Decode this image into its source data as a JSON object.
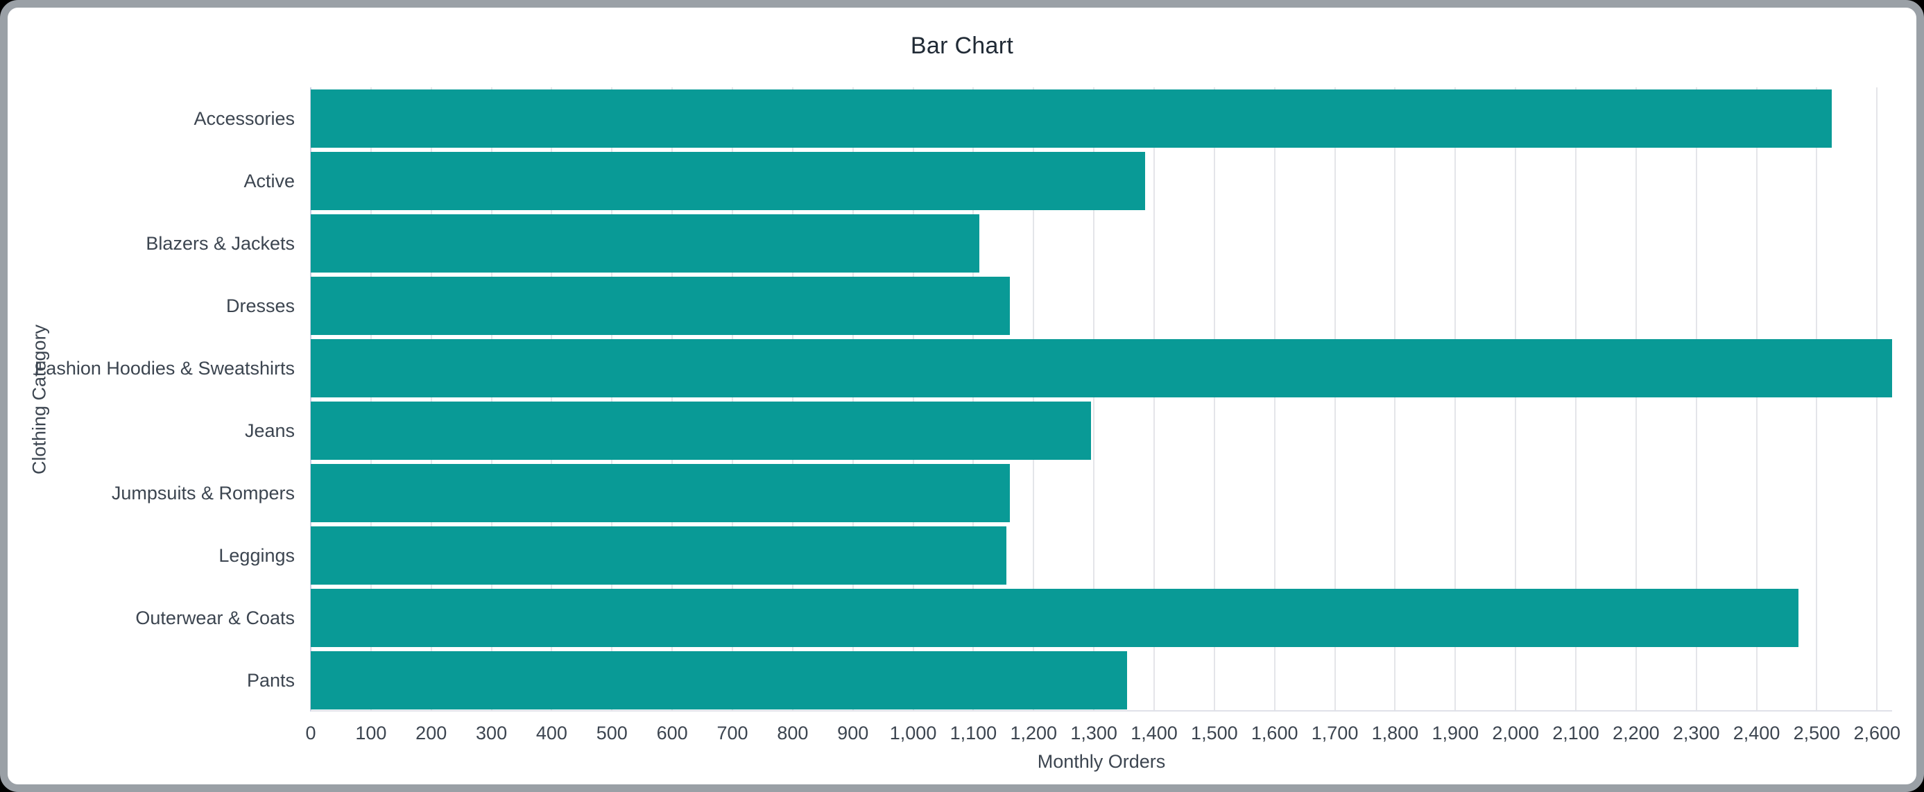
{
  "colors": {
    "bar": "#099a96",
    "frame": "#9aa0a6",
    "window_background": "#ffffff",
    "page_background": "#000000",
    "gridline": "#e4e5e9",
    "axis_line": "#c9cfe2",
    "title_text": "#212b36",
    "label_text": "#3c4550"
  },
  "chart_data": {
    "type": "bar",
    "orientation": "horizontal",
    "title": "Bar Chart",
    "xlabel": "Monthly Orders",
    "ylabel": "Clothing Category",
    "categories": [
      "Accessories",
      "Active",
      "Blazers & Jackets",
      "Dresses",
      "Fashion Hoodies & Sweatshirts",
      "Jeans",
      "Jumpsuits & Rompers",
      "Leggings",
      "Outerwear & Coats",
      "Pants"
    ],
    "values": [
      2525,
      1385,
      1110,
      1160,
      2625,
      1295,
      1160,
      1155,
      2470,
      1355
    ],
    "xlim": [
      0,
      2625
    ],
    "xticks": [
      0,
      100,
      200,
      300,
      400,
      500,
      600,
      700,
      800,
      900,
      1000,
      1100,
      1200,
      1300,
      1400,
      1500,
      1600,
      1700,
      1800,
      1900,
      2000,
      2100,
      2200,
      2300,
      2400,
      2500,
      2600
    ],
    "xtick_labels": [
      "0",
      "100",
      "200",
      "300",
      "400",
      "500",
      "600",
      "700",
      "800",
      "900",
      "1,000",
      "1,100",
      "1,200",
      "1,300",
      "1,400",
      "1,500",
      "1,600",
      "1,700",
      "1,800",
      "1,900",
      "2,000",
      "2,100",
      "2,200",
      "2,300",
      "2,400",
      "2,500",
      "2,600"
    ],
    "grid": true,
    "legend": "none",
    "bar_color": "#099a96"
  }
}
